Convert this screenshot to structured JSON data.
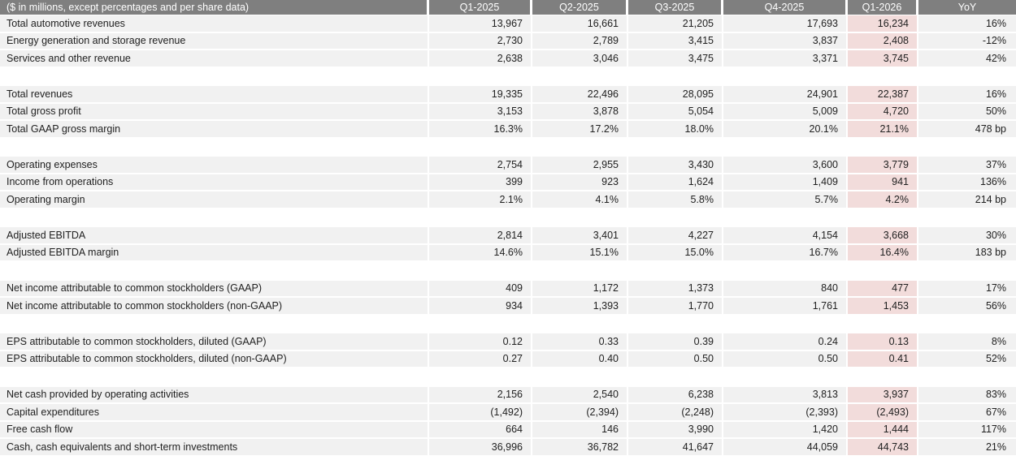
{
  "style": {
    "header_bg": "#7f7f7f",
    "header_text": "#ffffff",
    "row_bg": "#f1f1f1",
    "highlight_bg": "#f2dcdb",
    "text": "#212121"
  },
  "chart_data": {
    "type": "table",
    "header_label": "($ in millions, except percentages and per share data)",
    "columns": [
      "Q1-2025",
      "Q2-2025",
      "Q3-2025",
      "Q4-2025",
      "Q1-2026",
      "YoY"
    ],
    "highlighted_column": "Q1-2026",
    "sections": [
      {
        "rows": [
          {
            "label": "Total automotive revenues",
            "values": [
              "13,967",
              "16,661",
              "21,205",
              "17,693",
              "16,234",
              "16%"
            ]
          },
          {
            "label": "Energy generation and storage revenue",
            "values": [
              "2,730",
              "2,789",
              "3,415",
              "3,837",
              "2,408",
              "-12%"
            ]
          },
          {
            "label": "Services and other revenue",
            "values": [
              "2,638",
              "3,046",
              "3,475",
              "3,371",
              "3,745",
              "42%"
            ]
          }
        ]
      },
      {
        "rows": [
          {
            "label": "Total revenues",
            "values": [
              "19,335",
              "22,496",
              "28,095",
              "24,901",
              "22,387",
              "16%"
            ]
          },
          {
            "label": "Total gross profit",
            "values": [
              "3,153",
              "3,878",
              "5,054",
              "5,009",
              "4,720",
              "50%"
            ]
          },
          {
            "label": "Total GAAP gross margin",
            "values": [
              "16.3%",
              "17.2%",
              "18.0%",
              "20.1%",
              "21.1%",
              "478 bp"
            ]
          }
        ]
      },
      {
        "rows": [
          {
            "label": "Operating expenses",
            "values": [
              "2,754",
              "2,955",
              "3,430",
              "3,600",
              "3,779",
              "37%"
            ]
          },
          {
            "label": "Income from operations",
            "values": [
              "399",
              "923",
              "1,624",
              "1,409",
              "941",
              "136%"
            ]
          },
          {
            "label": "Operating margin",
            "values": [
              "2.1%",
              "4.1%",
              "5.8%",
              "5.7%",
              "4.2%",
              "214 bp"
            ]
          }
        ]
      },
      {
        "rows": [
          {
            "label": "Adjusted EBITDA",
            "values": [
              "2,814",
              "3,401",
              "4,227",
              "4,154",
              "3,668",
              "30%"
            ]
          },
          {
            "label": "Adjusted EBITDA margin",
            "values": [
              "14.6%",
              "15.1%",
              "15.0%",
              "16.7%",
              "16.4%",
              "183 bp"
            ]
          }
        ]
      },
      {
        "rows": [
          {
            "label": "Net income attributable to common stockholders (GAAP)",
            "values": [
              "409",
              "1,172",
              "1,373",
              "840",
              "477",
              "17%"
            ]
          },
          {
            "label": "Net income attributable to common stockholders (non-GAAP)",
            "values": [
              "934",
              "1,393",
              "1,770",
              "1,761",
              "1,453",
              "56%"
            ]
          }
        ]
      },
      {
        "rows": [
          {
            "label": "EPS attributable to common stockholders, diluted (GAAP)",
            "values": [
              "0.12",
              "0.33",
              "0.39",
              "0.24",
              "0.13",
              "8%"
            ]
          },
          {
            "label": "EPS attributable to common stockholders, diluted (non-GAAP)",
            "values": [
              "0.27",
              "0.40",
              "0.50",
              "0.50",
              "0.41",
              "52%"
            ]
          }
        ]
      },
      {
        "rows": [
          {
            "label": "Net cash provided by operating activities",
            "values": [
              "2,156",
              "2,540",
              "6,238",
              "3,813",
              "3,937",
              "83%"
            ]
          },
          {
            "label": "Capital expenditures",
            "values": [
              "(1,492)",
              "(2,394)",
              "(2,248)",
              "(2,393)",
              "(2,493)",
              "67%"
            ]
          },
          {
            "label": "Free cash flow",
            "values": [
              "664",
              "146",
              "3,990",
              "1,420",
              "1,444",
              "117%"
            ]
          },
          {
            "label": "Cash, cash equivalents and short-term investments",
            "values": [
              "36,996",
              "36,782",
              "41,647",
              "44,059",
              "44,743",
              "21%"
            ]
          }
        ]
      }
    ]
  }
}
